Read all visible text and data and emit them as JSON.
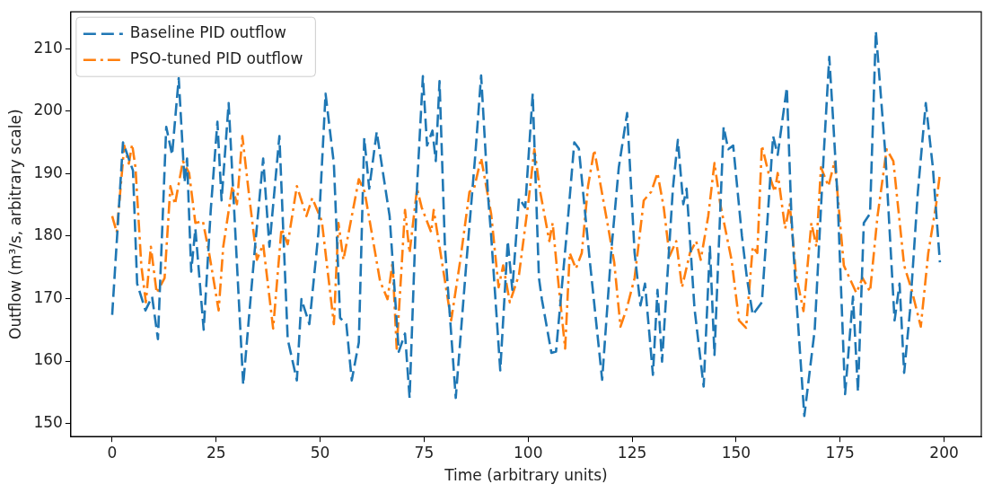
{
  "chart_data": {
    "type": "line",
    "xlabel": "Time (arbitrary units)",
    "ylabel": "Outflow (m³/s, arbitrary scale)",
    "xlim": [
      -9.95,
      208.95
    ],
    "xticks": [
      0,
      25,
      50,
      75,
      100,
      125,
      150,
      175,
      200
    ],
    "ylim": [
      147.9,
      215.9
    ],
    "yticks": [
      150,
      160,
      170,
      180,
      190,
      200,
      210
    ],
    "grid": false,
    "legend": "top left",
    "marker": "none",
    "series": [
      {
        "name": "Baseline PID outflow",
        "color": "#1f77b4",
        "line_style": "dashed",
        "x": [
          0,
          2.6,
          5,
          6,
          8,
          9.6,
          11,
          13,
          14.4,
          16,
          17.4,
          18,
          19,
          20,
          22,
          23.7,
          25.3,
          26.3,
          28,
          31.5,
          34.4,
          36.3,
          37.8,
          40.2,
          42.2,
          44.4,
          45.5,
          47.4,
          49.6,
          51.3,
          53.3,
          54.8,
          56.3,
          57.6,
          59.3,
          60.6,
          61.8,
          63.6,
          66.7,
          68.9,
          70.4,
          71.5,
          73.3,
          74.7,
          75.7,
          77,
          77.8,
          78.7,
          80,
          82.6,
          85.1,
          87.3,
          88.7,
          90.4,
          91.1,
          93.3,
          95.1,
          96.2,
          97.8,
          99.3,
          101.1,
          102.6,
          103.3,
          105.6,
          106.7,
          109.3,
          111.1,
          112.2,
          114.8,
          117.8,
          120,
          121.8,
          123.8,
          125.6,
          127,
          128.1,
          130,
          131.1,
          132.2,
          134.8,
          136,
          137.3,
          138.1,
          140,
          142.2,
          143.7,
          144.8,
          147,
          148.1,
          149.3,
          151.4,
          152.6,
          154,
          156.2,
          158.9,
          160,
          162.2,
          163.3,
          164.4,
          166.4,
          168.9,
          171.1,
          172.4,
          173.3,
          174.4,
          176.2,
          178.1,
          179.3,
          180.7,
          182.2,
          183.6,
          185.9,
          188.1,
          189.3,
          190.4,
          191.8,
          193.7,
          195.6,
          197.3,
          199
        ],
        "values": [
          167.4,
          195,
          190.5,
          172.4,
          168.1,
          170.3,
          163.5,
          197.5,
          193,
          205.3,
          188.6,
          192.4,
          174.3,
          181.2,
          165,
          184.2,
          198.3,
          185.7,
          201.3,
          156.2,
          178.7,
          192.4,
          178.3,
          196,
          163.5,
          156.9,
          169.9,
          165.9,
          180.6,
          202.8,
          191.6,
          166.9,
          165.9,
          156.9,
          163,
          195.7,
          187.6,
          196.7,
          183.2,
          161.5,
          164.4,
          154.1,
          188,
          205.6,
          194.5,
          196.9,
          192,
          204.8,
          178.3,
          154.1,
          175.3,
          193,
          205.7,
          186.1,
          180.2,
          158.5,
          179.2,
          171.4,
          186.1,
          184.6,
          202.8,
          173.3,
          169.9,
          161.3,
          161.5,
          180.6,
          195,
          194,
          176.2,
          157,
          177.7,
          191,
          199.7,
          177.3,
          168.9,
          172.4,
          157.8,
          171.4,
          159.9,
          187.6,
          195.4,
          185.1,
          187.6,
          168.4,
          155.9,
          178.3,
          161,
          197.5,
          193.9,
          194.5,
          180,
          173.3,
          167.4,
          169.4,
          196,
          193,
          203.8,
          183.2,
          170.9,
          151.2,
          165,
          193.5,
          208.7,
          198.9,
          186.1,
          154.7,
          170.3,
          155.1,
          182.1,
          183.6,
          212.8,
          193,
          166.5,
          172.4,
          158.1,
          168,
          187.1,
          201.3,
          191,
          175.8
        ]
      },
      {
        "name": "PSO-tuned PID outflow",
        "color": "#ff7f0e",
        "line_style": "dashdot",
        "x": [
          0,
          1.1,
          2.9,
          4,
          4.8,
          5.6,
          7,
          8.1,
          9.3,
          10.7,
          12.6,
          14,
          15.1,
          17,
          18.5,
          20,
          21.8,
          23.3,
          25.6,
          26.7,
          28.9,
          30,
          31.3,
          32.9,
          34.8,
          36.3,
          38.7,
          40.7,
          42.2,
          44.4,
          46.7,
          48.1,
          50.4,
          53.3,
          54.4,
          55.6,
          59.3,
          60.7,
          64.4,
          66.2,
          67.4,
          68.4,
          70.4,
          71.5,
          73.3,
          74.4,
          76.7,
          77.3,
          81.5,
          83.7,
          85.9,
          87,
          88.7,
          91.1,
          92.9,
          94,
          95.6,
          97.8,
          100,
          101.5,
          102.9,
          105.1,
          105.9,
          107,
          108.9,
          110,
          111.5,
          112.9,
          114.4,
          115.9,
          119.3,
          120.7,
          122.2,
          123.7,
          125.6,
          127.8,
          129.6,
          131.1,
          132.6,
          134,
          135.6,
          137,
          138.9,
          140.4,
          141.5,
          143.3,
          144.8,
          146.2,
          148.9,
          150.7,
          152.4,
          154,
          155.1,
          156.2,
          157.8,
          159.3,
          160,
          161.8,
          162.9,
          164.4,
          166.2,
          168.1,
          169.3,
          170.4,
          172.2,
          173.7,
          175.9,
          178.9,
          180.4,
          182.2,
          184,
          186.2,
          187.8,
          190.4,
          192.2,
          194.4,
          196.2,
          198.1,
          199
        ],
        "values": [
          183.2,
          180.6,
          194.5,
          191.6,
          194.7,
          191,
          175.3,
          169.4,
          178.3,
          170.9,
          173.3,
          188,
          185.1,
          192,
          190.1,
          182.1,
          182.4,
          177.3,
          168.1,
          178.3,
          188,
          185.1,
          196,
          186.6,
          176.2,
          178.7,
          165.2,
          181.2,
          178.7,
          188,
          183.2,
          186.1,
          182.4,
          165.9,
          182.1,
          176.2,
          189.1,
          187.1,
          172.8,
          169.9,
          175.8,
          162,
          184.2,
          177.3,
          187.6,
          184.6,
          180.6,
          184.2,
          166.5,
          176.2,
          187.1,
          187.6,
          192.5,
          183.6,
          171.8,
          175.3,
          169.4,
          173.8,
          185.1,
          193.9,
          187.1,
          179.2,
          182.1,
          174.3,
          162,
          177.3,
          174.8,
          177.3,
          188,
          193.8,
          181.2,
          175.8,
          165.5,
          168.4,
          173.3,
          185.7,
          187.1,
          190.1,
          184.6,
          176.8,
          179.2,
          171.8,
          177.3,
          179.2,
          176.2,
          183.2,
          191.7,
          185.1,
          176.2,
          166.5,
          165.3,
          178.3,
          177.3,
          194.5,
          190.1,
          187.1,
          190.1,
          181.2,
          185.1,
          173.8,
          168,
          182.1,
          178.3,
          191,
          188,
          192,
          175.3,
          170.9,
          173.3,
          171.1,
          183.2,
          193.9,
          192,
          175.3,
          171.4,
          165.5,
          177.3,
          185.1,
          190
        ]
      }
    ]
  }
}
